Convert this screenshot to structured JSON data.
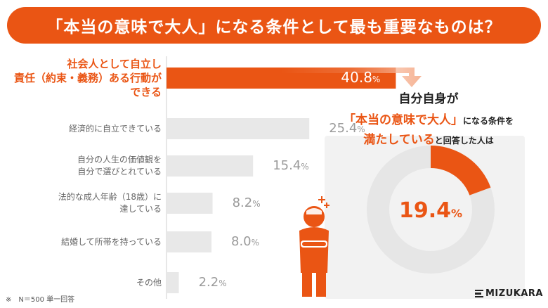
{
  "header": {
    "title_a": "「本当の意味で大人」",
    "title_b": "になる条件として最も重要なものは？"
  },
  "chart_data": {
    "type": "bar",
    "orientation": "horizontal",
    "categories": [
      [
        "社会人として自立し",
        "責任（約束・義務）ある行動が",
        "できる"
      ],
      [
        "経済的に自立できている"
      ],
      [
        "自分の人生の価値観を",
        "自分で選びとれている"
      ],
      [
        "法的な成人年齢（18歳）に",
        "達している"
      ],
      [
        "結婚して所帯を持っている"
      ],
      [
        "その他"
      ]
    ],
    "values": [
      40.8,
      25.4,
      15.4,
      8.2,
      8.0,
      2.2
    ],
    "value_labels": [
      "40.8",
      "25.4",
      "15.4",
      "8.2",
      "8.0",
      "2.2"
    ],
    "unit": "%",
    "highlight_index": 0,
    "xlim": [
      0,
      45
    ]
  },
  "pie": {
    "type": "pie",
    "title_line1": "自分自身が",
    "title_line2_highlight": "「本当の意味で大人」",
    "title_line2_rest": "になる条件を",
    "title_line3_highlight": "満たしている",
    "title_line3_rest": "と回答した人は",
    "value": 19.4,
    "value_label": "19.4",
    "unit": "%"
  },
  "note": "※　N＝500 単一回答",
  "logo": {
    "text": "MIZUKARA"
  },
  "colors": {
    "accent": "#ea5514",
    "bar_gray": "#e8e8e8",
    "donut_gray": "#e6e6e6",
    "panel_gray": "#f2f2f2"
  }
}
